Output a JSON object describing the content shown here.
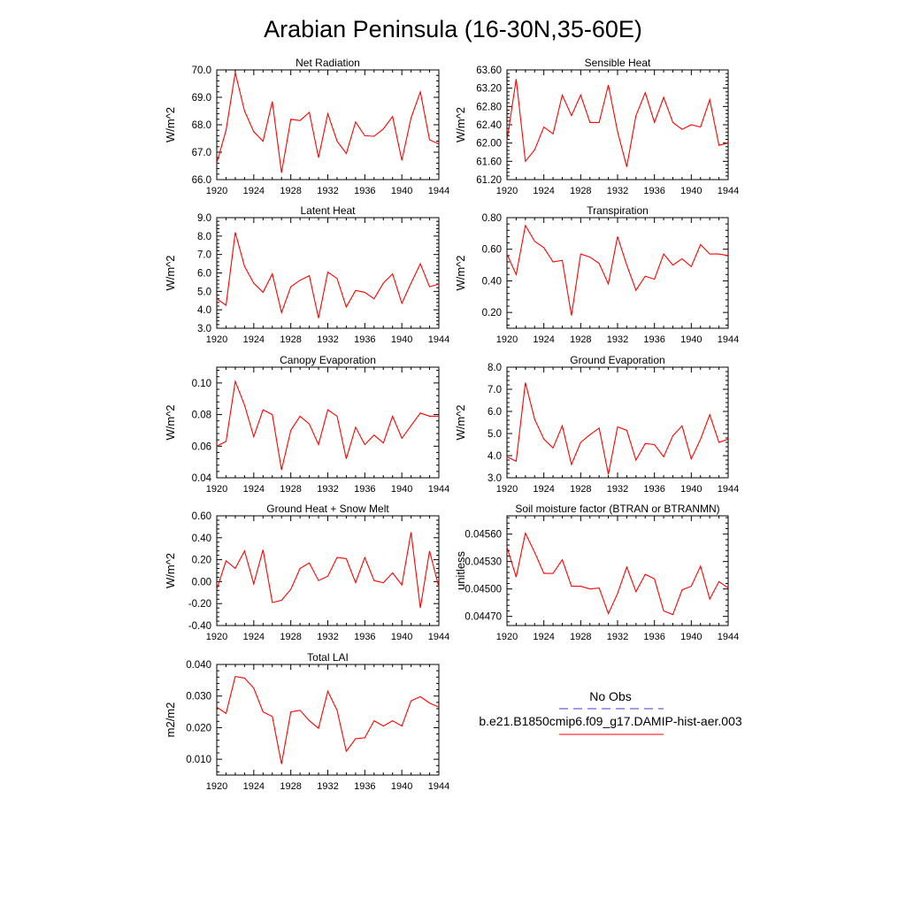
{
  "title": "Arabian Peninsula (16-30N,35-60E)",
  "legend": {
    "obs_label": "No Obs",
    "model_label": "b.e21.B1850cmip6.f09_g17.DAMIP-hist-aer.003",
    "obs_color": "#3b3bd6",
    "model_color": "#ff0000"
  },
  "chart_data": [
    {
      "type": "line",
      "title": "Net Radiation",
      "ylabel": "W/m^2",
      "xlim": [
        1920,
        1944
      ],
      "ylim": [
        66.0,
        70.0
      ],
      "xticks": [
        "1920",
        "1924",
        "1928",
        "1932",
        "1936",
        "1940",
        "1944"
      ],
      "yticks": [
        "66.0",
        "67.0",
        "68.0",
        "69.0",
        "70.0"
      ],
      "x": [
        1920,
        1921,
        1922,
        1923,
        1924,
        1925,
        1926,
        1927,
        1928,
        1929,
        1930,
        1931,
        1932,
        1933,
        1934,
        1935,
        1936,
        1937,
        1938,
        1939,
        1940,
        1941,
        1942,
        1943,
        1944
      ],
      "series": [
        {
          "name": "b.e21.B1850cmip6.f09_g17.DAMIP-hist-aer.003",
          "values": [
            66.6,
            67.8,
            69.9,
            68.5,
            67.75,
            67.4,
            68.85,
            66.25,
            68.2,
            68.15,
            68.45,
            66.8,
            68.4,
            67.4,
            66.95,
            68.1,
            67.6,
            67.58,
            67.85,
            68.3,
            66.7,
            68.25,
            69.2,
            67.45,
            67.3
          ]
        }
      ]
    },
    {
      "type": "line",
      "title": "Sensible Heat",
      "ylabel": "W/m^2",
      "xlim": [
        1920,
        1944
      ],
      "ylim": [
        61.2,
        63.6
      ],
      "xticks": [
        "1920",
        "1924",
        "1928",
        "1932",
        "1936",
        "1940",
        "1944"
      ],
      "yticks": [
        "61.20",
        "61.60",
        "62.00",
        "62.40",
        "62.80",
        "63.20",
        "63.60"
      ],
      "x": [
        1920,
        1921,
        1922,
        1923,
        1924,
        1925,
        1926,
        1927,
        1928,
        1929,
        1930,
        1931,
        1932,
        1933,
        1934,
        1935,
        1936,
        1937,
        1938,
        1939,
        1940,
        1941,
        1942,
        1943,
        1944
      ],
      "series": [
        {
          "name": "b.e21.B1850cmip6.f09_g17.DAMIP-hist-aer.003",
          "values": [
            62.05,
            63.4,
            61.6,
            61.85,
            62.35,
            62.2,
            63.05,
            62.6,
            63.05,
            62.45,
            62.45,
            63.27,
            62.25,
            61.48,
            62.6,
            63.1,
            62.45,
            63.0,
            62.45,
            62.3,
            62.4,
            62.35,
            62.95,
            61.95,
            62.0
          ]
        }
      ]
    },
    {
      "type": "line",
      "title": "Latent Heat",
      "ylabel": "W/m^2",
      "xlim": [
        1920,
        1944
      ],
      "ylim": [
        3.0,
        9.0
      ],
      "xticks": [
        "1920",
        "1924",
        "1928",
        "1932",
        "1936",
        "1940",
        "1944"
      ],
      "yticks": [
        "3.0",
        "4.0",
        "5.0",
        "6.0",
        "7.0",
        "8.0",
        "9.0"
      ],
      "x": [
        1920,
        1921,
        1922,
        1923,
        1924,
        1925,
        1926,
        1927,
        1928,
        1929,
        1930,
        1931,
        1932,
        1933,
        1934,
        1935,
        1936,
        1937,
        1938,
        1939,
        1940,
        1941,
        1942,
        1943,
        1944
      ],
      "series": [
        {
          "name": "b.e21.B1850cmip6.f09_g17.DAMIP-hist-aer.003",
          "values": [
            4.6,
            4.25,
            8.2,
            6.35,
            5.45,
            4.95,
            5.95,
            3.85,
            5.25,
            5.6,
            5.85,
            3.55,
            6.05,
            5.7,
            4.15,
            5.05,
            4.95,
            4.6,
            5.45,
            5.95,
            4.35,
            5.45,
            6.5,
            5.25,
            5.4
          ]
        }
      ]
    },
    {
      "type": "line",
      "title": "Transpiration",
      "ylabel": "W/m^2",
      "xlim": [
        1920,
        1944
      ],
      "ylim": [
        0.1,
        0.8
      ],
      "xticks": [
        "1920",
        "1924",
        "1928",
        "1932",
        "1936",
        "1940",
        "1944"
      ],
      "yticks": [
        "0.20",
        "0.40",
        "0.60",
        "0.80"
      ],
      "x": [
        1920,
        1921,
        1922,
        1923,
        1924,
        1925,
        1926,
        1927,
        1928,
        1929,
        1930,
        1931,
        1932,
        1933,
        1934,
        1935,
        1936,
        1937,
        1938,
        1939,
        1940,
        1941,
        1942,
        1943,
        1944
      ],
      "series": [
        {
          "name": "b.e21.B1850cmip6.f09_g17.DAMIP-hist-aer.003",
          "values": [
            0.57,
            0.44,
            0.75,
            0.65,
            0.61,
            0.52,
            0.53,
            0.18,
            0.57,
            0.55,
            0.51,
            0.38,
            0.68,
            0.5,
            0.34,
            0.43,
            0.41,
            0.57,
            0.5,
            0.54,
            0.49,
            0.63,
            0.57,
            0.57,
            0.56
          ]
        }
      ]
    },
    {
      "type": "line",
      "title": "Canopy Evaporation",
      "ylabel": "W/m^2",
      "xlim": [
        1920,
        1944
      ],
      "ylim": [
        0.04,
        0.11
      ],
      "xticks": [
        "1920",
        "1924",
        "1928",
        "1932",
        "1936",
        "1940",
        "1944"
      ],
      "yticks": [
        "0.04",
        "0.06",
        "0.08",
        "0.10"
      ],
      "x": [
        1920,
        1921,
        1922,
        1923,
        1924,
        1925,
        1926,
        1927,
        1928,
        1929,
        1930,
        1931,
        1932,
        1933,
        1934,
        1935,
        1936,
        1937,
        1938,
        1939,
        1940,
        1941,
        1942,
        1943,
        1944
      ],
      "series": [
        {
          "name": "b.e21.B1850cmip6.f09_g17.DAMIP-hist-aer.003",
          "values": [
            0.06,
            0.063,
            0.101,
            0.086,
            0.066,
            0.083,
            0.08,
            0.045,
            0.07,
            0.079,
            0.074,
            0.061,
            0.083,
            0.079,
            0.052,
            0.072,
            0.061,
            0.067,
            0.062,
            0.079,
            0.065,
            0.073,
            0.081,
            0.079,
            0.079
          ]
        }
      ]
    },
    {
      "type": "line",
      "title": "Ground Evaporation",
      "ylabel": "W/m^2",
      "xlim": [
        1920,
        1944
      ],
      "ylim": [
        3.0,
        8.0
      ],
      "xticks": [
        "1920",
        "1924",
        "1928",
        "1932",
        "1936",
        "1940",
        "1944"
      ],
      "yticks": [
        "3.0",
        "4.0",
        "5.0",
        "6.0",
        "7.0",
        "8.0"
      ],
      "x": [
        1920,
        1921,
        1922,
        1923,
        1924,
        1925,
        1926,
        1927,
        1928,
        1929,
        1930,
        1931,
        1932,
        1933,
        1934,
        1935,
        1936,
        1937,
        1938,
        1939,
        1940,
        1941,
        1942,
        1943,
        1944
      ],
      "series": [
        {
          "name": "b.e21.B1850cmip6.f09_g17.DAMIP-hist-aer.003",
          "values": [
            3.95,
            3.75,
            7.3,
            5.65,
            4.75,
            4.35,
            5.35,
            3.6,
            4.6,
            4.95,
            5.25,
            3.15,
            5.3,
            5.15,
            3.8,
            4.55,
            4.5,
            3.95,
            4.9,
            5.35,
            3.85,
            4.75,
            5.85,
            4.6,
            4.75
          ]
        }
      ]
    },
    {
      "type": "line",
      "title": "Ground Heat + Snow Melt",
      "ylabel": "W/m^2",
      "xlim": [
        1920,
        1944
      ],
      "ylim": [
        -0.4,
        0.6
      ],
      "xticks": [
        "1920",
        "1924",
        "1928",
        "1932",
        "1936",
        "1940",
        "1944"
      ],
      "yticks": [
        "-0.40",
        "-0.20",
        "0.00",
        "0.20",
        "0.40",
        "0.60"
      ],
      "x": [
        1920,
        1921,
        1922,
        1923,
        1924,
        1925,
        1926,
        1927,
        1928,
        1929,
        1930,
        1931,
        1932,
        1933,
        1934,
        1935,
        1936,
        1937,
        1938,
        1939,
        1940,
        1941,
        1942,
        1943,
        1944
      ],
      "series": [
        {
          "name": "b.e21.B1850cmip6.f09_g17.DAMIP-hist-aer.003",
          "values": [
            -0.07,
            0.19,
            0.12,
            0.28,
            -0.02,
            0.29,
            -0.19,
            -0.17,
            -0.07,
            0.12,
            0.17,
            0.01,
            0.05,
            0.22,
            0.21,
            -0.01,
            0.22,
            0.01,
            -0.01,
            0.08,
            -0.03,
            0.45,
            -0.24,
            0.28,
            -0.05
          ]
        }
      ]
    },
    {
      "type": "line",
      "title": "Soil moisture factor (BTRAN or BTRANMN)",
      "ylabel": "unitless",
      "xlim": [
        1920,
        1944
      ],
      "ylim": [
        0.0446,
        0.0458
      ],
      "xticks": [
        "1920",
        "1924",
        "1928",
        "1932",
        "1936",
        "1940",
        "1944"
      ],
      "yticks": [
        "0.04470",
        "0.04500",
        "0.04530",
        "0.04560"
      ],
      "x": [
        1920,
        1921,
        1922,
        1923,
        1924,
        1925,
        1926,
        1927,
        1928,
        1929,
        1930,
        1931,
        1932,
        1933,
        1934,
        1935,
        1936,
        1937,
        1938,
        1939,
        1940,
        1941,
        1942,
        1943,
        1944
      ],
      "series": [
        {
          "name": "b.e21.B1850cmip6.f09_g17.DAMIP-hist-aer.003",
          "values": [
            0.04546,
            0.04513,
            0.04561,
            0.0454,
            0.04517,
            0.04517,
            0.04532,
            0.04503,
            0.04503,
            0.045,
            0.04501,
            0.04473,
            0.04495,
            0.04524,
            0.04497,
            0.04516,
            0.04511,
            0.04476,
            0.04472,
            0.04499,
            0.04503,
            0.04525,
            0.04489,
            0.04508,
            0.04501
          ]
        }
      ]
    },
    {
      "type": "line",
      "title": "Total LAI",
      "ylabel": "m2/m2",
      "xlim": [
        1920,
        1944
      ],
      "ylim": [
        0.005,
        0.04
      ],
      "xticks": [
        "1920",
        "1924",
        "1928",
        "1932",
        "1936",
        "1940",
        "1944"
      ],
      "yticks": [
        "0.010",
        "0.020",
        "0.030",
        "0.040"
      ],
      "x": [
        1920,
        1921,
        1922,
        1923,
        1924,
        1925,
        1926,
        1927,
        1928,
        1929,
        1930,
        1931,
        1932,
        1933,
        1934,
        1935,
        1936,
        1937,
        1938,
        1939,
        1940,
        1941,
        1942,
        1943,
        1944
      ],
      "series": [
        {
          "name": "b.e21.B1850cmip6.f09_g17.DAMIP-hist-aer.003",
          "values": [
            0.0265,
            0.0245,
            0.0362,
            0.0357,
            0.0325,
            0.025,
            0.0235,
            0.0085,
            0.025,
            0.0255,
            0.0222,
            0.0198,
            0.0315,
            0.0255,
            0.0125,
            0.0165,
            0.0168,
            0.0222,
            0.0205,
            0.0222,
            0.0205,
            0.0285,
            0.0298,
            0.0278,
            0.0265
          ]
        }
      ]
    }
  ]
}
